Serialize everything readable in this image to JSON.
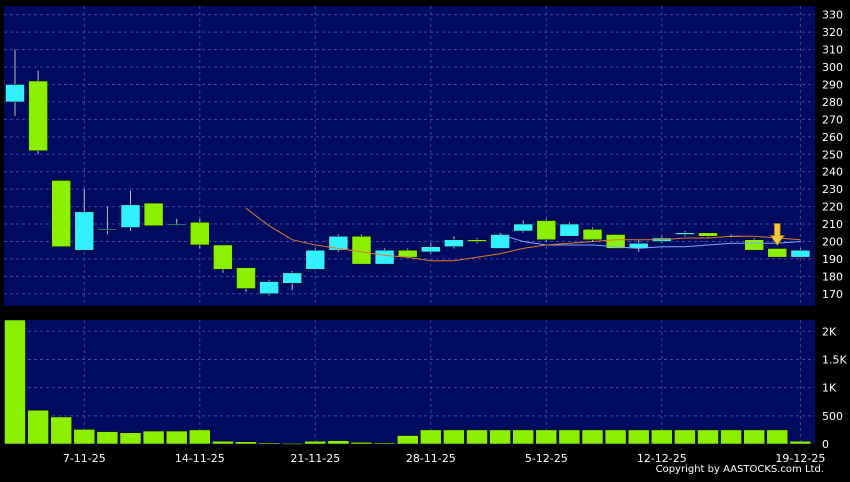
{
  "colors": {
    "background": "#000000",
    "plot_area": "#000a5e",
    "grid": "#3a4aa8",
    "axis_text": "#ffffff",
    "up_candle": "#33f0ff",
    "down_candle": "#8bf000",
    "wick": "#c0c0c0",
    "ma_short": "#e07a2a",
    "ma_long": "#7aa8ff",
    "volume_bar": "#8bf000",
    "marker_arrow": "#f5c542"
  },
  "copyright": "Copyright by AASTOCKS.com Ltd.",
  "chart_data": [
    {
      "type": "candlestick",
      "name": "price",
      "ylim": [
        163,
        335
      ],
      "yticks": [
        170,
        180,
        190,
        200,
        210,
        220,
        230,
        240,
        250,
        260,
        270,
        280,
        290,
        300,
        310,
        320,
        330
      ],
      "grid": true,
      "candles": [
        {
          "open": 280,
          "close": 290,
          "high": 310,
          "low": 272
        },
        {
          "open": 292,
          "close": 252,
          "high": 298,
          "low": 250
        },
        {
          "open": 235,
          "close": 197,
          "high": 235,
          "low": 197
        },
        {
          "open": 195,
          "close": 217,
          "high": 230,
          "low": 195
        },
        {
          "open": 207,
          "close": 207,
          "high": 220,
          "low": 204
        },
        {
          "open": 208,
          "close": 221,
          "high": 229,
          "low": 206
        },
        {
          "open": 222,
          "close": 209,
          "high": 222,
          "low": 209
        },
        {
          "open": 210,
          "close": 210,
          "high": 213,
          "low": 209
        },
        {
          "open": 211,
          "close": 198,
          "high": 213,
          "low": 196
        },
        {
          "open": 198,
          "close": 184,
          "high": 198,
          "low": 182
        },
        {
          "open": 185,
          "close": 173,
          "high": 185,
          "low": 171
        },
        {
          "open": 170,
          "close": 177,
          "high": 178,
          "low": 169
        },
        {
          "open": 176,
          "close": 182,
          "high": 183,
          "low": 172
        },
        {
          "open": 184,
          "close": 195,
          "high": 196,
          "low": 184
        },
        {
          "open": 195,
          "close": 203,
          "high": 204,
          "low": 194
        },
        {
          "open": 203,
          "close": 187,
          "high": 204,
          "low": 187
        },
        {
          "open": 187,
          "close": 195,
          "high": 196,
          "low": 187
        },
        {
          "open": 195,
          "close": 191,
          "high": 196,
          "low": 191
        },
        {
          "open": 194,
          "close": 197,
          "high": 199,
          "low": 193
        },
        {
          "open": 197,
          "close": 201,
          "high": 203,
          "low": 196
        },
        {
          "open": 201,
          "close": 200,
          "high": 202,
          "low": 199
        },
        {
          "open": 196,
          "close": 204,
          "high": 205,
          "low": 196
        },
        {
          "open": 206,
          "close": 210,
          "high": 212,
          "low": 205
        },
        {
          "open": 212,
          "close": 201,
          "high": 213,
          "low": 200
        },
        {
          "open": 203,
          "close": 210,
          "high": 211,
          "low": 203
        },
        {
          "open": 207,
          "close": 201,
          "high": 208,
          "low": 200
        },
        {
          "open": 204,
          "close": 196,
          "high": 204,
          "low": 196
        },
        {
          "open": 196,
          "close": 199,
          "high": 201,
          "low": 194
        },
        {
          "open": 200,
          "close": 202,
          "high": 203,
          "low": 199
        },
        {
          "open": 204,
          "close": 205,
          "high": 206,
          "low": 203
        },
        {
          "open": 205,
          "close": 203,
          "high": 205,
          "low": 202
        },
        {
          "open": 203,
          "close": 203,
          "high": 204,
          "low": 202
        },
        {
          "open": 201,
          "close": 195,
          "high": 202,
          "low": 195
        },
        {
          "open": 196,
          "close": 191,
          "high": 196,
          "low": 191
        },
        {
          "open": 191,
          "close": 195,
          "high": 196,
          "low": 191
        }
      ],
      "ma_short": [
        null,
        null,
        null,
        null,
        null,
        null,
        null,
        null,
        null,
        null,
        219,
        209,
        201,
        198,
        196,
        194,
        192,
        191,
        189,
        189,
        191,
        193,
        196,
        198,
        199,
        200,
        201,
        201,
        201,
        202,
        202,
        203,
        203,
        202,
        201
      ],
      "ma_long": [
        null,
        null,
        null,
        null,
        null,
        null,
        null,
        null,
        null,
        null,
        null,
        null,
        null,
        null,
        null,
        null,
        null,
        null,
        null,
        null,
        null,
        204,
        200,
        198,
        198,
        198,
        197,
        196,
        197,
        197,
        198,
        199,
        199,
        199,
        200
      ],
      "marker": {
        "type": "arrow-down",
        "candle_index": 33
      }
    },
    {
      "type": "bar",
      "name": "volume",
      "ylim": [
        0,
        2200
      ],
      "yticks": [
        0,
        500,
        1000,
        1500,
        2000
      ],
      "ytick_labels": [
        "0",
        "500",
        "1K",
        "1.5K",
        "2K"
      ],
      "grid": true,
      "values": [
        2200,
        600,
        480,
        260,
        220,
        200,
        230,
        230,
        250,
        50,
        40,
        20,
        10,
        50,
        60,
        30,
        20,
        150,
        250,
        250,
        250,
        250,
        250,
        250,
        250,
        250,
        250,
        250,
        250,
        250,
        250,
        250,
        250,
        250,
        50
      ],
      "xtick_labels": [
        {
          "label": "7-11-25",
          "candle_index": 3
        },
        {
          "label": "14-11-25",
          "candle_index": 8
        },
        {
          "label": "21-11-25",
          "candle_index": 13
        },
        {
          "label": "28-11-25",
          "candle_index": 18
        },
        {
          "label": "5-12-25",
          "candle_index": 23
        },
        {
          "label": "12-12-25",
          "candle_index": 28
        },
        {
          "label": "19-12-25",
          "candle_index": 34
        }
      ]
    }
  ]
}
